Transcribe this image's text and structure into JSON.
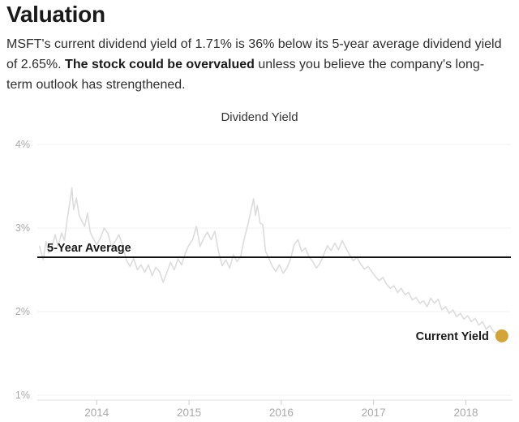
{
  "page": {
    "title": "Valuation",
    "summary": {
      "before": "MSFT's current dividend yield of 1.71% is 36% below its 5-year average dividend yield of 2.65%. ",
      "bold": "The stock could be overvalued",
      "after": " unless you believe the company's long-term outlook has strengthened."
    }
  },
  "chart_data": {
    "type": "line",
    "title": "Dividend Yield",
    "xlim": [
      2013.356,
      2018.488
    ],
    "ylim": [
      1,
      4
    ],
    "grid": true,
    "y_gridlines": [
      {
        "value": 4,
        "label": "4%"
      },
      {
        "value": 3,
        "label": "3%"
      },
      {
        "value": 2,
        "label": "2%"
      },
      {
        "value": 1,
        "label": "1%"
      }
    ],
    "x_ticks": [
      {
        "value": 2014,
        "label": "2014"
      },
      {
        "value": 2015,
        "label": "2015"
      },
      {
        "value": 2016,
        "label": "2016"
      },
      {
        "value": 2017,
        "label": "2017"
      },
      {
        "value": 2018,
        "label": "2018"
      }
    ],
    "average_line": {
      "label": "5-Year Average",
      "value": 2.65
    },
    "current_point": {
      "label": "Current Yield",
      "x": 2018.39,
      "y": 1.71
    },
    "series": [
      {
        "name": "Dividend Yield",
        "x": [
          2013.38,
          2013.42,
          2013.45,
          2013.48,
          2013.52,
          2013.55,
          2013.58,
          2013.62,
          2013.65,
          2013.68,
          2013.71,
          2013.73,
          2013.75,
          2013.78,
          2013.81,
          2013.84,
          2013.87,
          2013.9,
          2013.93,
          2013.96,
          2014.0,
          2014.04,
          2014.08,
          2014.12,
          2014.16,
          2014.2,
          2014.24,
          2014.28,
          2014.32,
          2014.36,
          2014.4,
          2014.44,
          2014.48,
          2014.52,
          2014.56,
          2014.6,
          2014.64,
          2014.68,
          2014.72,
          2014.76,
          2014.8,
          2014.84,
          2014.88,
          2014.92,
          2014.96,
          2015.0,
          2015.04,
          2015.08,
          2015.12,
          2015.16,
          2015.2,
          2015.24,
          2015.28,
          2015.32,
          2015.36,
          2015.4,
          2015.44,
          2015.48,
          2015.52,
          2015.56,
          2015.6,
          2015.64,
          2015.67,
          2015.7,
          2015.72,
          2015.74,
          2015.77,
          2015.8,
          2015.83,
          2015.86,
          2015.9,
          2015.94,
          2015.98,
          2016.02,
          2016.06,
          2016.1,
          2016.14,
          2016.18,
          2016.22,
          2016.26,
          2016.3,
          2016.34,
          2016.38,
          2016.42,
          2016.46,
          2016.5,
          2016.54,
          2016.58,
          2016.62,
          2016.66,
          2016.7,
          2016.74,
          2016.78,
          2016.82,
          2016.86,
          2016.9,
          2016.94,
          2016.98,
          2017.02,
          2017.06,
          2017.1,
          2017.14,
          2017.18,
          2017.22,
          2017.26,
          2017.3,
          2017.34,
          2017.38,
          2017.42,
          2017.46,
          2017.5,
          2017.54,
          2017.58,
          2017.62,
          2017.66,
          2017.7,
          2017.74,
          2017.78,
          2017.82,
          2017.86,
          2017.9,
          2017.94,
          2017.98,
          2018.02,
          2018.06,
          2018.1,
          2018.14,
          2018.18,
          2018.22,
          2018.26,
          2018.3,
          2018.34,
          2018.39
        ],
        "y": [
          2.78,
          2.62,
          2.84,
          2.7,
          2.8,
          2.92,
          2.78,
          2.94,
          2.85,
          3.1,
          3.32,
          3.48,
          3.22,
          3.36,
          3.15,
          3.08,
          3.02,
          3.18,
          2.95,
          2.88,
          2.8,
          2.88,
          3.0,
          2.94,
          2.78,
          2.84,
          2.92,
          2.8,
          2.62,
          2.54,
          2.64,
          2.5,
          2.56,
          2.47,
          2.56,
          2.43,
          2.53,
          2.48,
          2.35,
          2.47,
          2.59,
          2.5,
          2.63,
          2.56,
          2.7,
          2.8,
          2.86,
          3.02,
          2.78,
          2.88,
          2.95,
          2.86,
          2.96,
          2.72,
          2.55,
          2.62,
          2.52,
          2.68,
          2.6,
          2.66,
          2.88,
          3.05,
          3.2,
          3.35,
          3.15,
          3.27,
          3.06,
          3.04,
          2.72,
          2.65,
          2.55,
          2.48,
          2.56,
          2.46,
          2.52,
          2.63,
          2.8,
          2.86,
          2.72,
          2.76,
          2.66,
          2.6,
          2.52,
          2.58,
          2.68,
          2.79,
          2.73,
          2.82,
          2.74,
          2.85,
          2.76,
          2.68,
          2.61,
          2.65,
          2.57,
          2.51,
          2.54,
          2.48,
          2.42,
          2.37,
          2.41,
          2.33,
          2.28,
          2.31,
          2.23,
          2.28,
          2.2,
          2.23,
          2.14,
          2.17,
          2.1,
          2.13,
          2.06,
          2.16,
          2.1,
          2.15,
          2.02,
          2.06,
          1.98,
          2.02,
          1.94,
          1.98,
          1.91,
          1.95,
          1.88,
          1.92,
          1.84,
          1.88,
          1.79,
          1.83,
          1.76,
          1.74,
          1.71
        ]
      }
    ],
    "colors": {
      "series": "#dcdcdc",
      "average_line": "#111111",
      "current_dot": "#d4a437",
      "grid": "#f0f0f0",
      "axis": "#e2e2e2",
      "tick": "#cccccc",
      "tick_label": "#a9a9a9",
      "annotation_text": "#1a1a1a",
      "title_text": "#333333"
    }
  }
}
